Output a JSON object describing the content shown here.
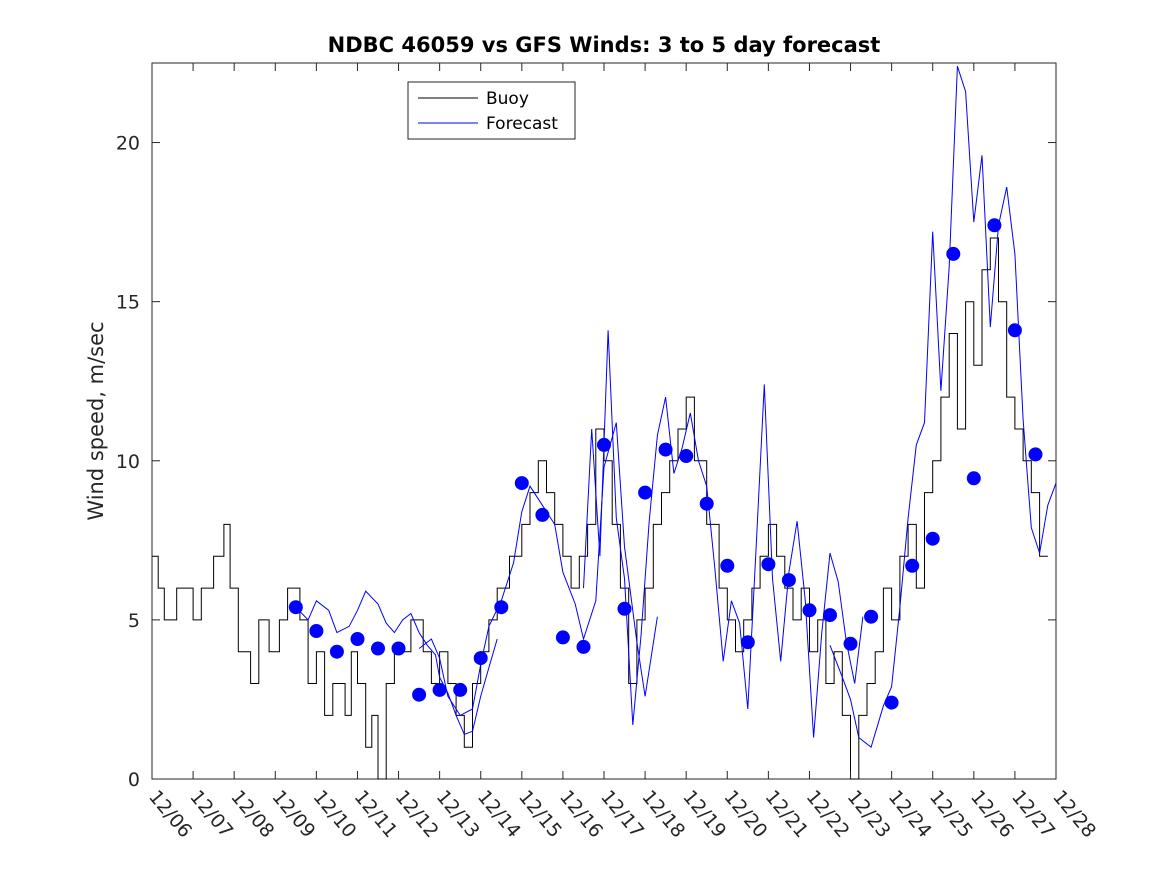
{
  "chart_data": {
    "type": "line",
    "title": "NDBC 46059 vs GFS Winds: 3 to 5 day forecast",
    "xlabel": "",
    "ylabel": "Wind speed, m/sec",
    "xlim": [
      0,
      22
    ],
    "ylim": [
      0,
      22.5
    ],
    "grid": false,
    "legend_placement": "top-left-center",
    "xtick_labels": [
      "12/06",
      "12/07",
      "12/08",
      "12/09",
      "12/10",
      "12/11",
      "12/12",
      "12/13",
      "12/14",
      "12/15",
      "12/16",
      "12/17",
      "12/18",
      "12/19",
      "12/20",
      "12/21",
      "12/22",
      "12/23",
      "12/24",
      "12/25",
      "12/26",
      "12/27",
      "12/28"
    ],
    "ytick_values": [
      0,
      5,
      10,
      15,
      20
    ],
    "ytick_labels": [
      "0",
      "5",
      "10",
      "15",
      "20"
    ],
    "legend": [
      "Buoy",
      "Forecast"
    ],
    "colors": {
      "buoy": "#000000",
      "forecast": "#0000ff",
      "axes": "#262626"
    },
    "series": [
      {
        "name": "Buoy",
        "kind": "step",
        "x": [
          0,
          0.15,
          0.3,
          0.6,
          1.0,
          1.2,
          1.5,
          1.75,
          1.9,
          2.1,
          2.4,
          2.6,
          2.85,
          3.1,
          3.3,
          3.6,
          3.8,
          4.0,
          4.2,
          4.4,
          4.7,
          4.85,
          5.0,
          5.2,
          5.35,
          5.5,
          5.7,
          5.9,
          6.1,
          6.3,
          6.6,
          6.8,
          7.0,
          7.2,
          7.4,
          7.6,
          7.8,
          8.0,
          8.2,
          8.4,
          8.7,
          9.0,
          9.2,
          9.4,
          9.6,
          9.8,
          10.0,
          10.2,
          10.4,
          10.6,
          10.8,
          11.0,
          11.2,
          11.4,
          11.6,
          11.8,
          12.0,
          12.2,
          12.4,
          12.6,
          12.8,
          13.0,
          13.2,
          13.5,
          13.8,
          14.0,
          14.2,
          14.4,
          14.6,
          14.8,
          15.0,
          15.2,
          15.4,
          15.6,
          15.8,
          16.0,
          16.2,
          16.4,
          16.6,
          16.8,
          17.0,
          17.2,
          17.4,
          17.6,
          17.8,
          18.0,
          18.2,
          18.4,
          18.6,
          18.8,
          19.0,
          19.2,
          19.4,
          19.6,
          19.8,
          20.0,
          20.2,
          20.4,
          20.6,
          20.8,
          21.0,
          21.2,
          21.4,
          21.6
        ],
        "values": [
          7,
          6,
          5,
          6,
          5,
          6,
          7,
          8,
          6,
          4,
          3,
          5,
          4,
          5,
          6,
          5,
          3,
          4,
          2,
          3,
          2,
          4,
          3,
          1,
          2,
          0,
          3,
          4,
          4,
          5,
          4,
          3,
          4,
          3,
          2,
          1,
          3,
          4,
          5,
          6,
          7,
          8,
          9,
          10,
          9,
          8,
          7,
          6,
          7,
          8,
          11,
          10,
          8,
          6,
          3,
          5,
          6,
          8,
          9,
          10,
          11,
          12,
          10,
          8,
          6,
          5,
          4,
          5,
          6,
          7,
          8,
          7,
          6,
          5,
          6,
          4,
          5,
          3,
          4,
          2,
          0,
          2,
          3,
          4,
          6,
          5,
          7,
          8,
          6,
          9,
          10,
          12,
          14,
          11,
          15,
          13,
          16,
          17,
          15,
          12,
          11,
          10,
          9,
          7
        ]
      },
      {
        "name": "Forecast",
        "kind": "lines",
        "runs": [
          {
            "x": [
              3.5,
              3.8,
              4.0,
              4.3,
              4.5,
              4.8,
              5.0,
              5.2,
              5.5,
              5.7,
              5.9,
              6.1,
              6.3,
              6.5,
              6.7,
              6.9,
              7.0,
              7.2,
              7.4,
              7.6,
              7.8,
              8.0,
              8.2,
              8.4
            ],
            "values": [
              5.4,
              5.0,
              5.6,
              5.3,
              4.6,
              4.8,
              5.3,
              5.9,
              5.5,
              4.9,
              4.6,
              5.0,
              5.2,
              4.6,
              4.2,
              3.9,
              3.2,
              2.7,
              2.0,
              1.4,
              1.5,
              2.6,
              3.5,
              4.4
            ]
          },
          {
            "x": [
              6.5,
              6.8,
              7.0,
              7.2,
              7.5,
              7.8,
              8.0,
              8.2,
              8.5,
              8.8,
              9.0,
              9.2,
              9.5,
              9.8,
              10.0,
              10.3,
              10.5,
              10.8,
              11.0,
              11.3,
              11.5,
              11.8,
              12.0,
              12.3
            ],
            "values": [
              4.1,
              4.4,
              3.8,
              2.6,
              2.0,
              2.2,
              3.6,
              4.8,
              5.6,
              6.8,
              8.4,
              9.2,
              8.6,
              8.0,
              6.5,
              5.5,
              4.4,
              5.6,
              9.8,
              11.2,
              7.3,
              4.3,
              2.6,
              5.1
            ]
          },
          {
            "x": [
              10.5,
              10.7,
              10.9,
              11.1,
              11.3,
              11.5,
              11.7,
              11.9,
              12.1,
              12.3,
              12.5,
              12.7,
              12.9,
              13.1,
              13.3,
              13.5,
              13.7,
              13.9,
              14.1,
              14.3,
              14.5,
              14.7,
              14.9,
              15.1,
              15.3,
              15.5,
              15.7,
              15.9,
              16.1,
              16.3,
              16.5,
              16.7,
              16.9,
              17.1,
              17.3
            ],
            "values": [
              6.0,
              11.0,
              7.0,
              14.1,
              8.2,
              6.3,
              1.7,
              4.5,
              8.1,
              10.8,
              12.0,
              9.6,
              10.4,
              11.5,
              10.0,
              9.2,
              6.6,
              3.7,
              5.6,
              4.9,
              2.2,
              7.2,
              12.4,
              6.3,
              3.7,
              6.5,
              8.1,
              5.6,
              1.3,
              4.6,
              7.1,
              6.2,
              4.3,
              3.0,
              5.1
            ]
          },
          {
            "x": [
              16.5,
              16.8,
              17.0,
              17.2,
              17.5,
              17.8,
              18.0,
              18.2,
              18.4,
              18.6,
              18.8,
              19.0,
              19.2,
              19.4,
              19.6,
              19.8,
              20.0,
              20.2,
              20.4,
              20.6,
              20.8,
              21.0,
              21.2,
              21.4,
              21.6,
              21.8,
              22.0
            ],
            "values": [
              4.2,
              3.2,
              2.5,
              1.3,
              1.0,
              2.3,
              2.9,
              5.4,
              8.2,
              10.5,
              11.2,
              17.2,
              12.2,
              16.1,
              22.4,
              21.6,
              17.5,
              19.6,
              14.2,
              17.4,
              18.6,
              16.5,
              11.3,
              7.9,
              7.1,
              8.6,
              9.3
            ]
          }
        ]
      },
      {
        "name": "",
        "kind": "markers",
        "x": [
          3.5,
          4.0,
          4.5,
          5.0,
          5.5,
          6.0,
          6.5,
          7.0,
          7.5,
          8.0,
          8.5,
          9.0,
          9.5,
          10.0,
          10.5,
          11.0,
          11.5,
          12.0,
          12.5,
          13.0,
          13.5,
          14.0,
          14.5,
          15.0,
          15.5,
          16.0,
          16.5,
          17.0,
          17.5,
          18.0,
          18.5,
          19.0,
          19.5,
          20.0,
          20.5,
          21.0,
          21.5
        ],
        "values": [
          5.4,
          4.65,
          4.0,
          4.4,
          4.1,
          4.1,
          2.65,
          2.8,
          2.8,
          3.8,
          5.4,
          9.3,
          8.3,
          4.45,
          4.15,
          10.5,
          5.35,
          9.0,
          10.35,
          10.15,
          8.65,
          6.7,
          4.3,
          6.75,
          6.25,
          5.3,
          5.15,
          4.25,
          5.1,
          2.4,
          6.7,
          7.55,
          16.5,
          9.45,
          17.4,
          14.1,
          10.2
        ]
      }
    ]
  }
}
